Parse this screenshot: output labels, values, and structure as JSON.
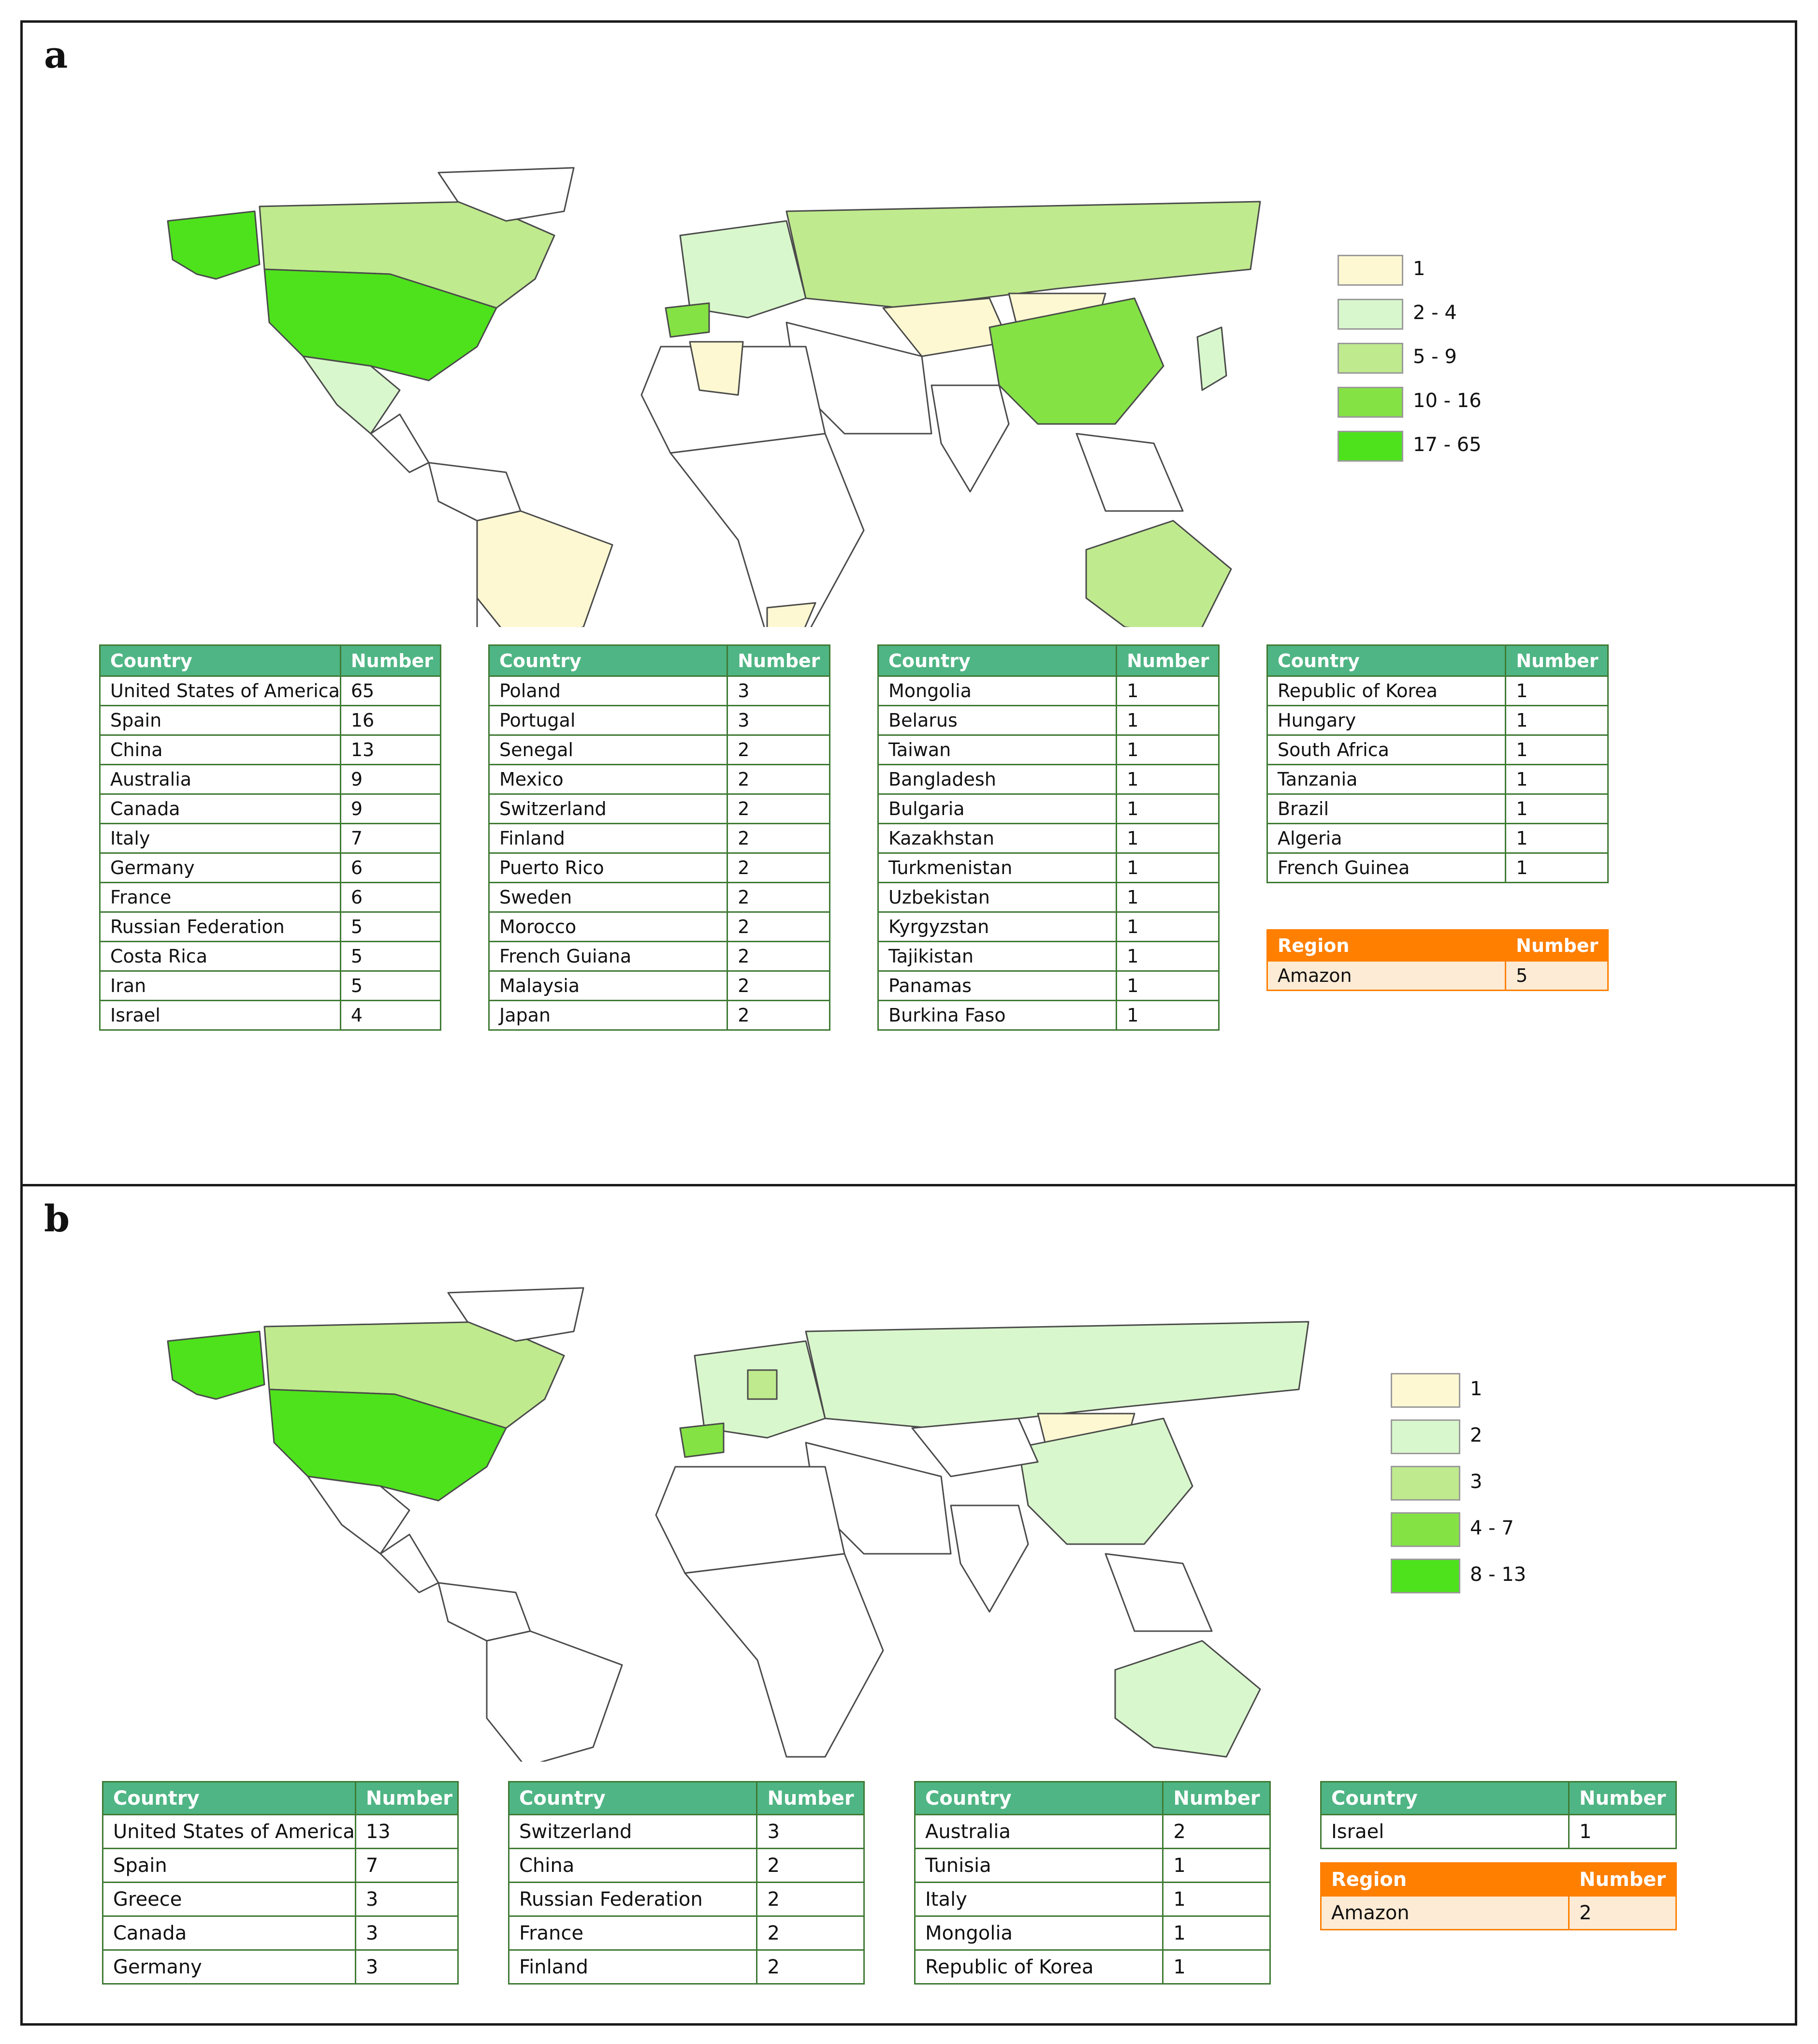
{
  "panels": [
    {
      "label": "a",
      "legend": [
        {
          "label": "1",
          "color": "#fdf8d2"
        },
        {
          "label": "2 - 4",
          "color": "#d9f7cc"
        },
        {
          "label": "5 - 9",
          "color": "#c0ea8e"
        },
        {
          "label": "10 - 16",
          "color": "#84e245"
        },
        {
          "label": "17 - 65",
          "color": "#4ee21c"
        }
      ],
      "tables": [
        {
          "headers": [
            "Country",
            "Number"
          ],
          "rows": [
            [
              "United States of America",
              "65"
            ],
            [
              "Spain",
              "16"
            ],
            [
              "China",
              "13"
            ],
            [
              "Australia",
              "9"
            ],
            [
              "Canada",
              "9"
            ],
            [
              "Italy",
              "7"
            ],
            [
              "Germany",
              "6"
            ],
            [
              "France",
              "6"
            ],
            [
              "Russian Federation",
              "5"
            ],
            [
              "Costa Rica",
              "5"
            ],
            [
              "Iran",
              "5"
            ],
            [
              "Israel",
              "4"
            ]
          ]
        },
        {
          "headers": [
            "Country",
            "Number"
          ],
          "rows": [
            [
              "Poland",
              "3"
            ],
            [
              "Portugal",
              "3"
            ],
            [
              "Senegal",
              "2"
            ],
            [
              "Mexico",
              "2"
            ],
            [
              "Switzerland",
              "2"
            ],
            [
              "Finland",
              "2"
            ],
            [
              "Puerto Rico",
              "2"
            ],
            [
              "Sweden",
              "2"
            ],
            [
              "Morocco",
              "2"
            ],
            [
              "French Guiana",
              "2"
            ],
            [
              "Malaysia",
              "2"
            ],
            [
              "Japan",
              "2"
            ]
          ]
        },
        {
          "headers": [
            "Country",
            "Number"
          ],
          "rows": [
            [
              "Mongolia",
              "1"
            ],
            [
              "Belarus",
              "1"
            ],
            [
              "Taiwan",
              "1"
            ],
            [
              "Bangladesh",
              "1"
            ],
            [
              "Bulgaria",
              "1"
            ],
            [
              "Kazakhstan",
              "1"
            ],
            [
              "Turkmenistan",
              "1"
            ],
            [
              "Uzbekistan",
              "1"
            ],
            [
              "Kyrgyzstan",
              "1"
            ],
            [
              "Tajikistan",
              "1"
            ],
            [
              "Panamas",
              "1"
            ],
            [
              "Burkina Faso",
              "1"
            ]
          ]
        },
        {
          "headers": [
            "Country",
            "Number"
          ],
          "rows": [
            [
              "Republic of Korea",
              "1"
            ],
            [
              "Hungary",
              "1"
            ],
            [
              "South Africa",
              "1"
            ],
            [
              "Tanzania",
              "1"
            ],
            [
              "Brazil",
              "1"
            ],
            [
              "Algeria",
              "1"
            ],
            [
              "French Guinea",
              "1"
            ]
          ]
        }
      ],
      "region_table": {
        "headers": [
          "Region",
          "Number"
        ],
        "rows": [
          [
            "Amazon",
            "5"
          ]
        ]
      }
    },
    {
      "label": "b",
      "legend": [
        {
          "label": "1",
          "color": "#fdf8d2"
        },
        {
          "label": "2",
          "color": "#d9f7cc"
        },
        {
          "label": "3",
          "color": "#c0ea8e"
        },
        {
          "label": "4 - 7",
          "color": "#84e245"
        },
        {
          "label": "8 - 13",
          "color": "#4ee21c"
        }
      ],
      "tables": [
        {
          "headers": [
            "Country",
            "Number"
          ],
          "rows": [
            [
              "United States of America",
              "13"
            ],
            [
              "Spain",
              "7"
            ],
            [
              "Greece",
              "3"
            ],
            [
              "Canada",
              "3"
            ],
            [
              "Germany",
              "3"
            ]
          ]
        },
        {
          "headers": [
            "Country",
            "Number"
          ],
          "rows": [
            [
              "Switzerland",
              "3"
            ],
            [
              "China",
              "2"
            ],
            [
              "Russian Federation",
              "2"
            ],
            [
              "France",
              "2"
            ],
            [
              "Finland",
              "2"
            ]
          ]
        },
        {
          "headers": [
            "Country",
            "Number"
          ],
          "rows": [
            [
              "Australia",
              "2"
            ],
            [
              "Tunisia",
              "1"
            ],
            [
              "Italy",
              "1"
            ],
            [
              "Mongolia",
              "1"
            ],
            [
              "Republic of Korea",
              "1"
            ]
          ]
        },
        {
          "headers": [
            "Country",
            "Number"
          ],
          "rows": [
            [
              "Israel",
              "1"
            ]
          ]
        }
      ],
      "region_table": {
        "headers": [
          "Region",
          "Number"
        ],
        "rows": [
          [
            "Amazon",
            "2"
          ]
        ]
      }
    }
  ]
}
